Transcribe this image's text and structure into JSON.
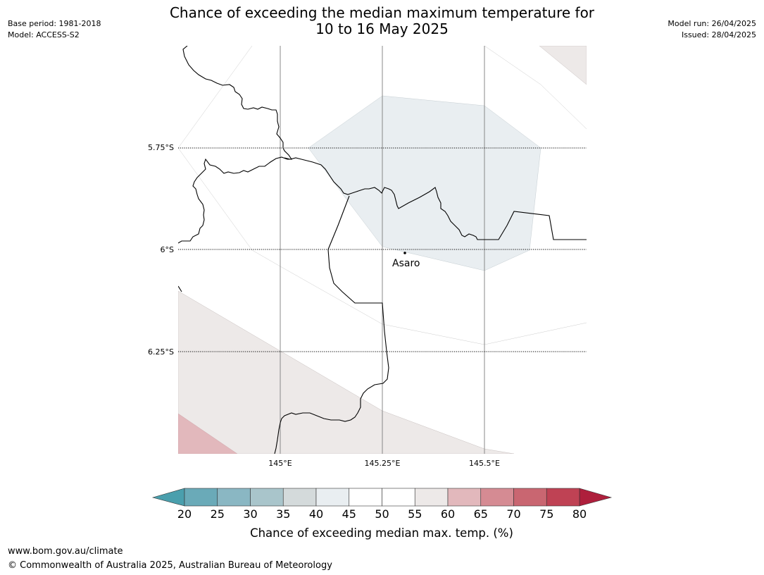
{
  "header": {
    "title_line1": "Chance of exceeding the median maximum temperature for",
    "title_line2": "10 to 16 May 2025",
    "base_period": "Base period: 1981-2018",
    "model": "Model: ACCESS-S2",
    "model_run": "Model run: 26/04/2025",
    "issued": "Issued: 28/04/2025"
  },
  "map": {
    "lat_labels": [
      "5.75°S",
      "6°S",
      "6.25°S"
    ],
    "lon_labels": [
      "145°E",
      "145.25°E",
      "145.5°E"
    ],
    "place": {
      "name": "Asaro"
    },
    "colors": {
      "band_40_45": "#e9eef1",
      "band_55_60": "#ede9e8",
      "band_60_65": "#e2b8bc",
      "border": "#000000",
      "graticule": "#888888"
    }
  },
  "colorbar": {
    "label": "Chance of exceeding median max. temp. (%)",
    "ticks": [
      "20",
      "25",
      "30",
      "35",
      "40",
      "45",
      "50",
      "55",
      "60",
      "65",
      "70",
      "75",
      "80"
    ],
    "colors": [
      "#6aaab8",
      "#8ab7c3",
      "#a9c5cb",
      "#d4dadb",
      "#e9eef1",
      "#ffffff",
      "#ffffff",
      "#ede9e8",
      "#e2b8bc",
      "#d58b93",
      "#c96671",
      "#bf4254"
    ],
    "under_color": "#4a9fad",
    "over_color": "#ae1f3c"
  },
  "footer": {
    "url": "www.bom.gov.au/climate",
    "copyright": "© Commonwealth of Australia 2025, Australian Bureau of Meteorology"
  }
}
